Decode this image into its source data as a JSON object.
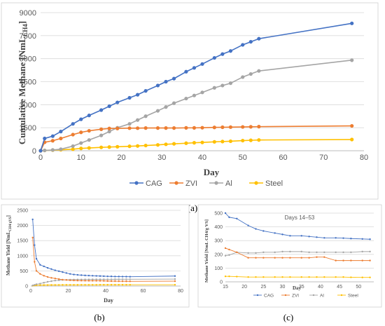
{
  "colors": {
    "CAG": "#4472C4",
    "ZVI": "#ED7D31",
    "Al": "#A5A5A5",
    "Steel": "#FFC000",
    "grid": "#d9d9d9",
    "frame": "#bfbfbf"
  },
  "chart_data": [
    {
      "id": "a",
      "type": "line",
      "panel_label": "(a)",
      "title": "",
      "xlabel": "Day",
      "ylabel": "Cumulative Methane [NmL",
      "ylabel_sub": "CH4",
      "ylabel_end": "]",
      "xlim": [
        0,
        80
      ],
      "ylim": [
        0,
        9000
      ],
      "xticks": [
        0,
        10,
        20,
        30,
        40,
        50,
        60,
        70,
        80
      ],
      "yticks": [
        0,
        1500,
        3000,
        4500,
        6000,
        7500,
        9000
      ],
      "grid": "horizontal",
      "legend": "bottom",
      "x": [
        0,
        1,
        3,
        5,
        8,
        10,
        12,
        15,
        17,
        19,
        22,
        24,
        26,
        29,
        31,
        33,
        36,
        38,
        40,
        43,
        45,
        47,
        50,
        52,
        54,
        77
      ],
      "series": [
        {
          "name": "CAG",
          "values": [
            0,
            800,
            950,
            1250,
            1750,
            2050,
            2300,
            2650,
            2900,
            3150,
            3450,
            3650,
            3900,
            4250,
            4500,
            4700,
            5150,
            5400,
            5650,
            6050,
            6300,
            6500,
            6900,
            7100,
            7300,
            8300
          ]
        },
        {
          "name": "ZVI",
          "values": [
            0,
            550,
            650,
            800,
            1050,
            1200,
            1300,
            1400,
            1450,
            1450,
            1470,
            1470,
            1480,
            1480,
            1480,
            1480,
            1490,
            1490,
            1500,
            1520,
            1530,
            1540,
            1550,
            1560,
            1570,
            1620
          ]
        },
        {
          "name": "Al",
          "values": [
            0,
            20,
            50,
            100,
            300,
            500,
            700,
            1000,
            1250,
            1500,
            1750,
            2000,
            2250,
            2600,
            2850,
            3100,
            3400,
            3600,
            3800,
            4100,
            4250,
            4400,
            4800,
            5000,
            5200,
            5900
          ]
        },
        {
          "name": "Steel",
          "values": [
            0,
            20,
            40,
            60,
            100,
            150,
            180,
            220,
            240,
            260,
            290,
            310,
            340,
            380,
            420,
            450,
            490,
            520,
            540,
            580,
            600,
            620,
            660,
            680,
            700,
            730
          ]
        }
      ]
    },
    {
      "id": "b",
      "type": "line",
      "panel_label": "(b)",
      "title": "",
      "xlabel": "Day",
      "ylabel": "Methane Yield  [NmL",
      "ylabel_sub": "CH4/gVS",
      "ylabel_end": "]",
      "xlim": [
        0,
        80
      ],
      "ylim": [
        0,
        2500
      ],
      "xticks": [
        0,
        20,
        40,
        60,
        80
      ],
      "yticks": [
        0,
        500,
        1000,
        1500,
        2000,
        2500
      ],
      "grid": "horizontal",
      "legend": "none",
      "x": [
        1,
        2,
        3,
        5,
        7,
        9,
        11,
        13,
        15,
        17,
        19,
        21,
        23,
        25,
        27,
        29,
        31,
        33,
        35,
        37,
        39,
        41,
        43,
        45,
        47,
        49,
        51,
        53,
        77
      ],
      "series": [
        {
          "name": "CAG",
          "values": [
            2200,
            1350,
            900,
            700,
            650,
            600,
            560,
            520,
            490,
            460,
            430,
            400,
            380,
            370,
            360,
            350,
            345,
            340,
            335,
            330,
            325,
            320,
            318,
            315,
            313,
            312,
            310,
            308,
            330
          ]
        },
        {
          "name": "ZVI",
          "values": [
            1600,
            800,
            500,
            400,
            340,
            300,
            270,
            250,
            230,
            210,
            200,
            190,
            185,
            180,
            178,
            176,
            175,
            174,
            173,
            172,
            170,
            165,
            162,
            160,
            158,
            157,
            156,
            155,
            160
          ]
        },
        {
          "name": "Al",
          "values": [
            20,
            40,
            60,
            80,
            110,
            140,
            160,
            180,
            190,
            200,
            205,
            210,
            212,
            214,
            216,
            218,
            219,
            220,
            221,
            221,
            222,
            222,
            222,
            223,
            223,
            224,
            224,
            225,
            230
          ]
        },
        {
          "name": "Steel",
          "values": [
            10,
            20,
            25,
            30,
            32,
            34,
            35,
            36,
            37,
            38,
            38,
            39,
            39,
            39,
            40,
            40,
            40,
            40,
            40,
            41,
            41,
            41,
            41,
            41,
            41,
            41,
            41,
            41,
            42
          ]
        }
      ]
    },
    {
      "id": "c",
      "type": "line",
      "panel_label": "(c)",
      "title": "Days 14–53",
      "xlabel": "Day",
      "ylabel": "Methane Yield  [NmL CH4/g VS]",
      "xlim": [
        15,
        54
      ],
      "ylim": [
        0,
        500
      ],
      "xticks": [
        15,
        20,
        25,
        30,
        35,
        40,
        45,
        50
      ],
      "yticks": [
        0,
        100,
        200,
        300,
        400,
        500
      ],
      "grid": "horizontal",
      "legend": "bottom",
      "x": [
        15,
        16,
        18,
        21,
        23,
        25,
        28,
        30,
        32,
        35,
        37,
        39,
        41,
        44,
        46,
        48,
        51,
        53
      ],
      "series": [
        {
          "name": "CAG",
          "values": [
            500,
            470,
            460,
            410,
            385,
            370,
            355,
            345,
            335,
            335,
            330,
            325,
            320,
            320,
            318,
            315,
            312,
            310
          ]
        },
        {
          "name": "ZVI",
          "values": [
            245,
            235,
            215,
            175,
            175,
            175,
            175,
            175,
            175,
            175,
            175,
            180,
            180,
            155,
            155,
            155,
            155,
            155
          ]
        },
        {
          "name": "Al",
          "values": [
            190,
            195,
            215,
            210,
            210,
            215,
            215,
            220,
            220,
            220,
            215,
            215,
            215,
            215,
            215,
            215,
            220,
            220
          ]
        },
        {
          "name": "Steel",
          "values": [
            40,
            40,
            38,
            35,
            35,
            35,
            35,
            35,
            35,
            35,
            35,
            35,
            35,
            35,
            35,
            33,
            32,
            32
          ]
        }
      ]
    }
  ]
}
